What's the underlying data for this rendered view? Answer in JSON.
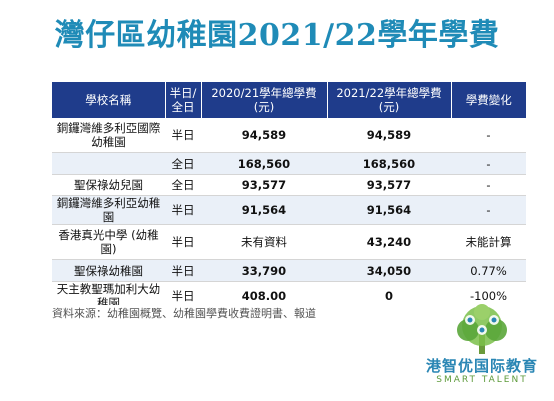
{
  "title": "灣仔區幼稚園2021/22學年學費",
  "table": {
    "headers": [
      "學校名稱",
      "半日/全日",
      "2020/21學年總學費(元)",
      "2021/22學年總學費(元)",
      "學費變化"
    ],
    "rows": [
      {
        "school": "銅鑼灣維多利亞國際幼稚園",
        "session": "半日",
        "fee_2021": "94,589",
        "fee_2122": "94,589",
        "change": "-"
      },
      {
        "school": "",
        "session": "全日",
        "fee_2021": "168,560",
        "fee_2122": "168,560",
        "change": "-"
      },
      {
        "school": "聖保祿幼兒園",
        "session": "全日",
        "fee_2021": "93,577",
        "fee_2122": "93,577",
        "change": "-"
      },
      {
        "school": "銅鑼灣維多利亞幼稚園",
        "session": "半日",
        "fee_2021": "91,564",
        "fee_2122": "91,564",
        "change": "-"
      },
      {
        "school": "香港真光中學 (幼稚園)",
        "session": "半日",
        "fee_2021": "未有資料",
        "fee_2122": "43,240",
        "change": "未能計算"
      },
      {
        "school": "聖保祿幼稚園",
        "session": "半日",
        "fee_2021": "33,790",
        "fee_2122": "34,050",
        "change": "0.77%"
      },
      {
        "school": "天主教聖瑪加利大幼稚園",
        "session": "半日",
        "fee_2021": "408.00",
        "fee_2122": "0",
        "change": "-100%"
      }
    ]
  },
  "source_note": "資料來源：幼稚園概覽、幼稚園學費收費證明書、報道",
  "logo": {
    "cn": "港智优国际教育",
    "en": "SMART TALENT"
  },
  "colors": {
    "title": "#1f8bb7",
    "header_bg": "#1f3c8b",
    "stripe": "#eaf0f8"
  }
}
